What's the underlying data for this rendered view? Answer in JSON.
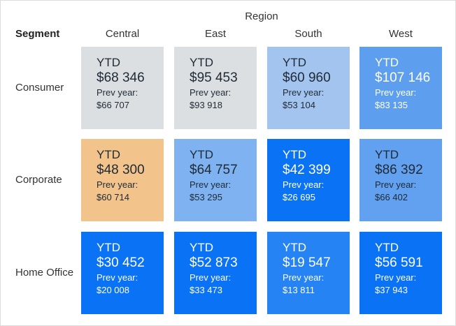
{
  "chart_data": {
    "type": "heatmap",
    "column_dimension": "Region",
    "row_dimension": "Segment",
    "columns": [
      "Central",
      "East",
      "South",
      "West"
    ],
    "rows": [
      "Consumer",
      "Corporate",
      "Home Office"
    ],
    "kpi_label": "YTD",
    "prev_label": "Prev year:",
    "cells": [
      [
        {
          "ytd": 68346,
          "ytd_text": "$68 346",
          "prev": 66707,
          "prev_text": "$66 707",
          "color": "#dcdfe2"
        },
        {
          "ytd": 95453,
          "ytd_text": "$95 453",
          "prev": 93918,
          "prev_text": "$93 918",
          "color": "#dcdfe2"
        },
        {
          "ytd": 60960,
          "ytd_text": "$60 960",
          "prev": 53104,
          "prev_text": "$53 104",
          "color": "#a3c4ee"
        },
        {
          "ytd": 107146,
          "ytd_text": "$107 146",
          "prev": 83135,
          "prev_text": "$83 135",
          "color": "#5e9eef"
        }
      ],
      [
        {
          "ytd": 48300,
          "ytd_text": "$48 300",
          "prev": 60714,
          "prev_text": "$60 714",
          "color": "#f2c48b"
        },
        {
          "ytd": 64757,
          "ytd_text": "$64 757",
          "prev": 53295,
          "prev_text": "$53 295",
          "color": "#7fb2f0"
        },
        {
          "ytd": 42399,
          "ytd_text": "$42 399",
          "prev": 26695,
          "prev_text": "$26 695",
          "color": "#0a73f5"
        },
        {
          "ytd": 86392,
          "ytd_text": "$86 392",
          "prev": 66402,
          "prev_text": "$66 402",
          "color": "#62a1ef"
        }
      ],
      [
        {
          "ytd": 30452,
          "ytd_text": "$30 452",
          "prev": 20008,
          "prev_text": "$20 008",
          "color": "#0a73f5"
        },
        {
          "ytd": 52873,
          "ytd_text": "$52 873",
          "prev": 33473,
          "prev_text": "$33 473",
          "color": "#0a73f5"
        },
        {
          "ytd": 19547,
          "ytd_text": "$19 547",
          "prev": 13811,
          "prev_text": "$13 811",
          "color": "#2583f3"
        },
        {
          "ytd": 56591,
          "ytd_text": "$56 591",
          "prev": 37943,
          "prev_text": "$37 943",
          "color": "#0a73f5"
        }
      ]
    ]
  }
}
